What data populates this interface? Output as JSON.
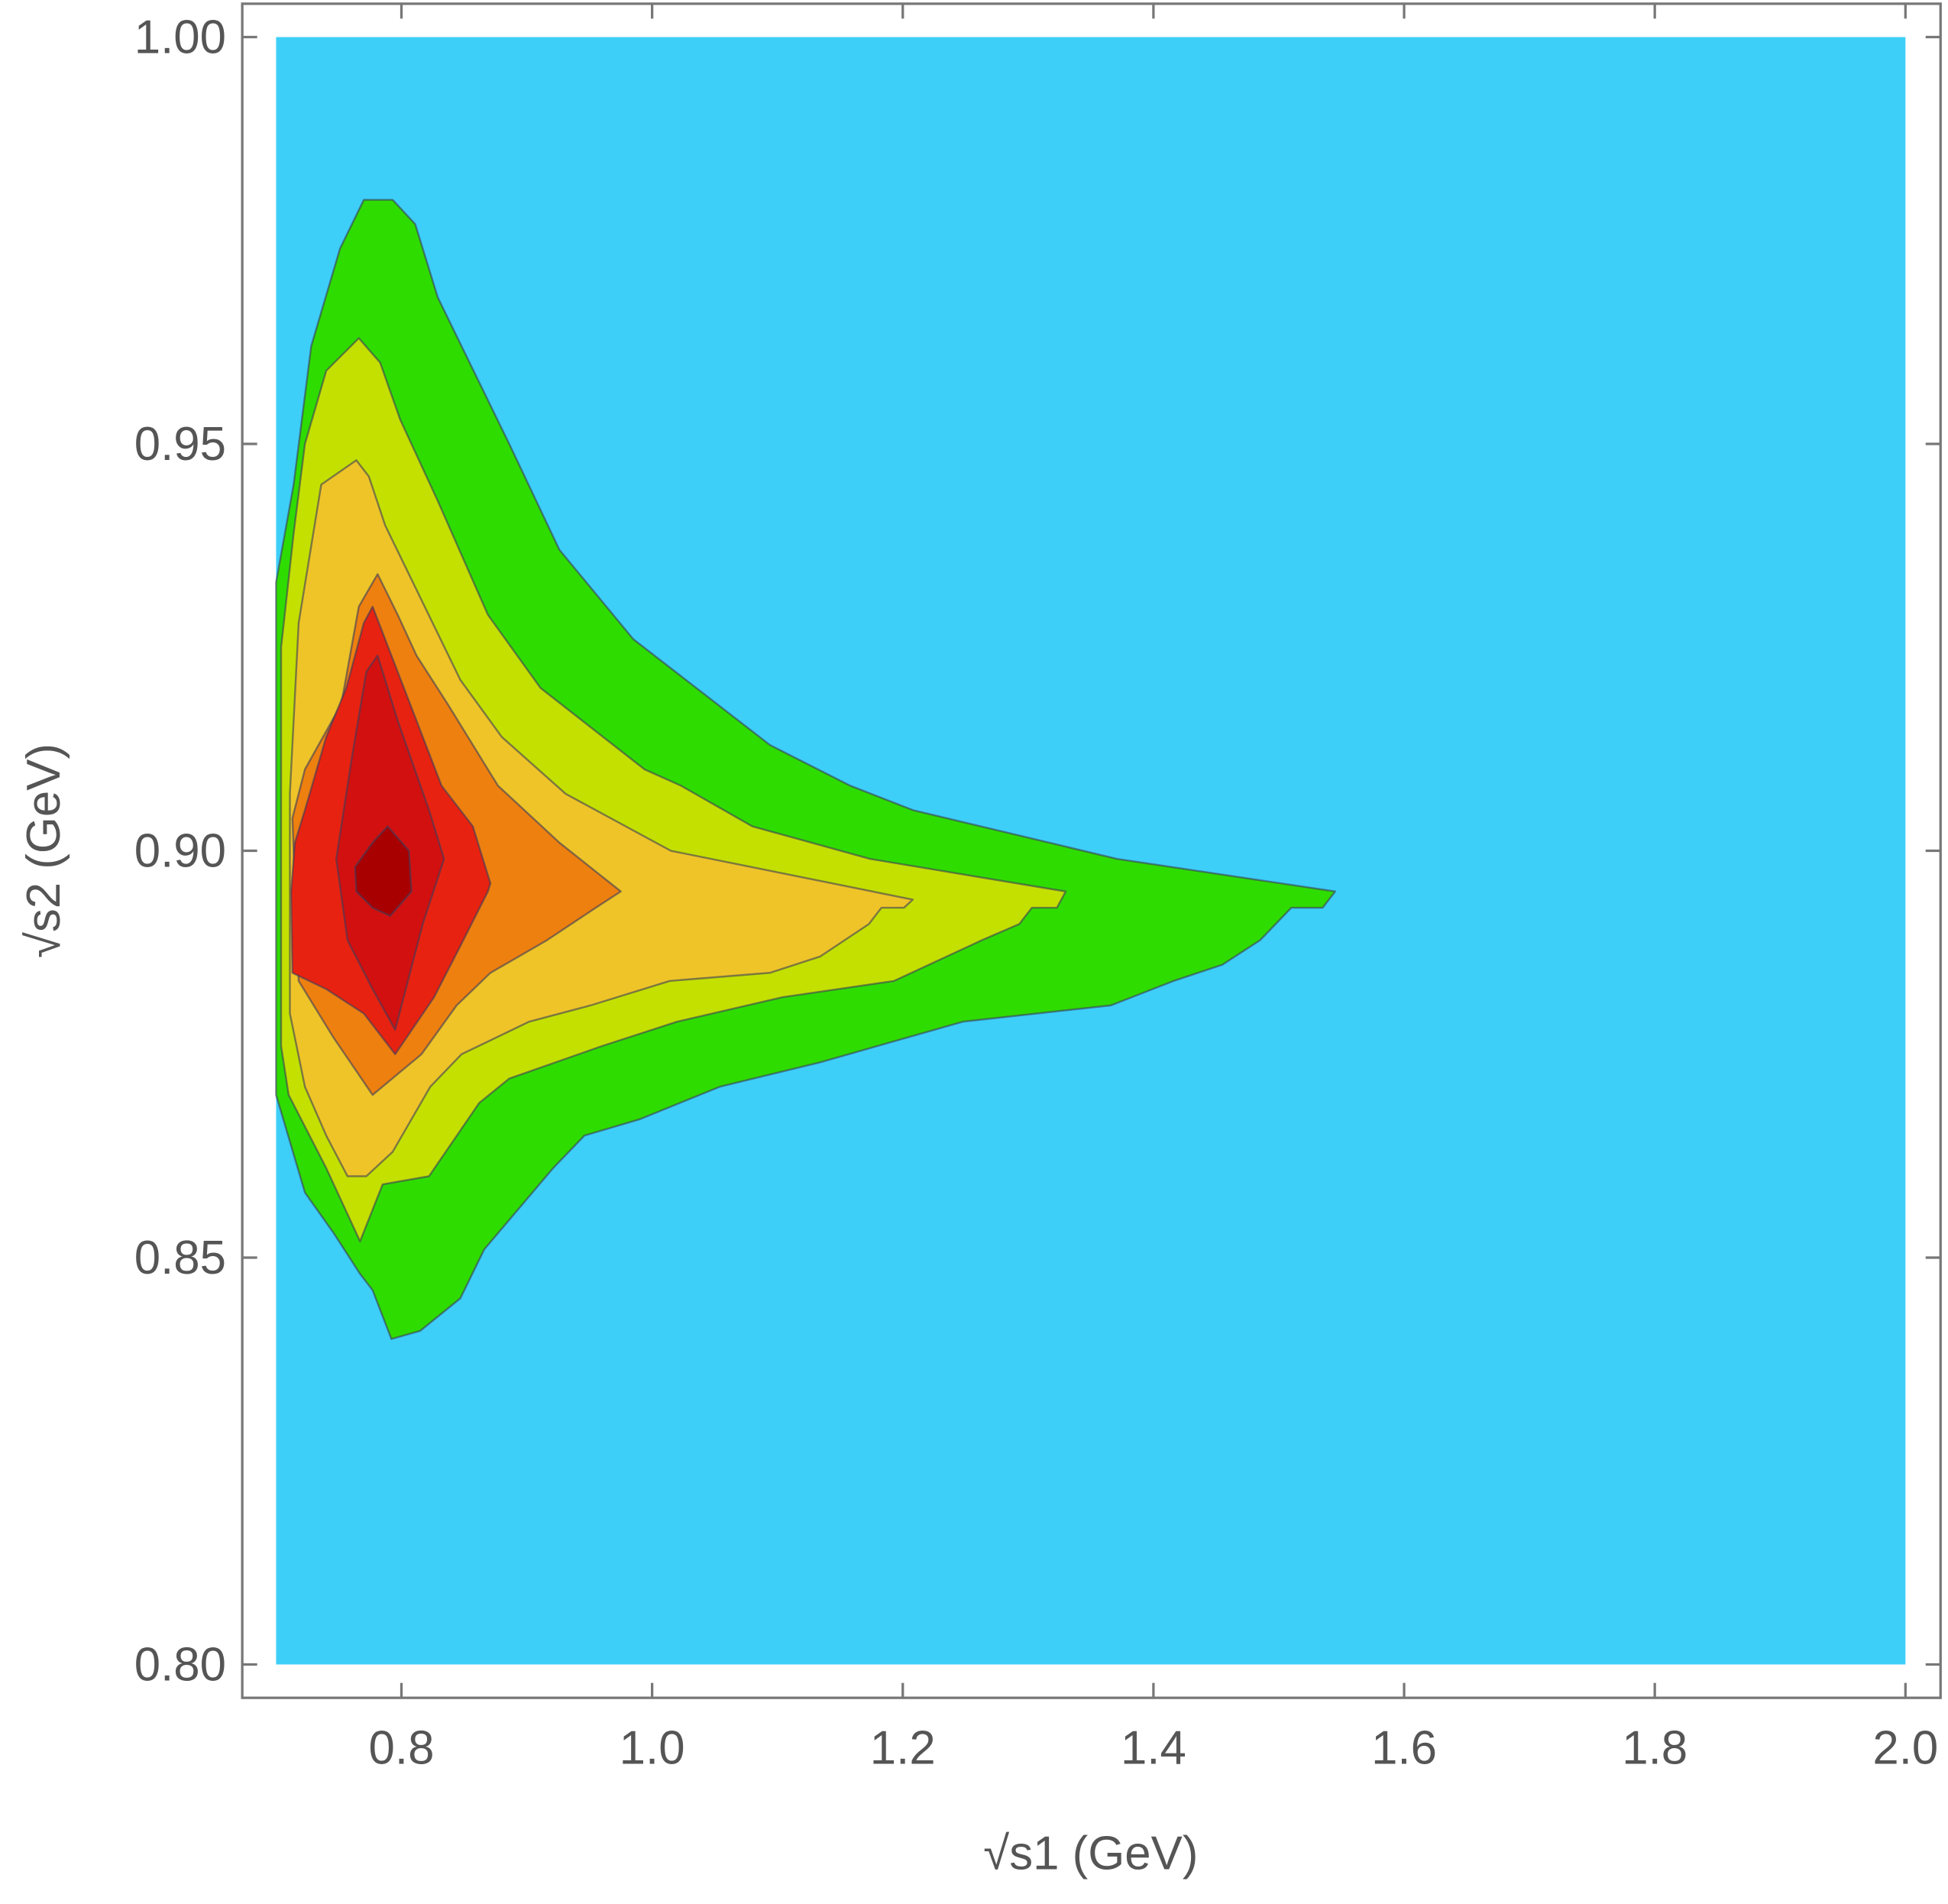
{
  "chart_data": {
    "type": "contour",
    "xlabel": "√s1 (GeV)",
    "ylabel": "√s2 (GeV)",
    "xlim": [
      0.673,
      2.028
    ],
    "ylim": [
      0.7959,
      1.0041
    ],
    "xticks": [
      0.8,
      {
        "value": 1,
        "label": "1.0"
      },
      1.2,
      1.4,
      1.6,
      1.8,
      {
        "value": 2,
        "label": "2.0"
      }
    ],
    "yticks": [
      {
        "value": 0.8,
        "label": "0.80"
      },
      0.85,
      {
        "value": 0.9,
        "label": "0.90"
      },
      0.95,
      {
        "value": 1,
        "label": "1.00"
      }
    ],
    "grid": false,
    "region": {
      "x": [
        0.7,
        2.0
      ],
      "y": [
        0.8,
        1.0
      ],
      "color": "#3dcff8"
    },
    "series": [
      {
        "color": "#2fdc00",
        "x": [
          0.7,
          0.7,
          0.714,
          0.728,
          0.751,
          0.77,
          0.793,
          0.811,
          0.829,
          0.886,
          0.926,
          0.985,
          1.094,
          1.158,
          1.208,
          1.371,
          1.545,
          1.535,
          1.51,
          1.485,
          1.455,
          1.416,
          1.366,
          1.248,
          1.134,
          1.054,
          0.99,
          0.946,
          0.921,
          0.866,
          0.847,
          0.815,
          0.792,
          0.777,
          0.767,
          0.746,
          0.723,
          0.7
        ],
        "y": [
          0.872,
          0.933,
          0.945,
          0.962,
          0.974,
          0.98,
          0.98,
          0.977,
          0.968,
          0.95,
          0.937,
          0.926,
          0.913,
          0.908,
          0.905,
          0.899,
          0.895,
          0.893,
          0.893,
          0.889,
          0.886,
          0.884,
          0.881,
          0.879,
          0.874,
          0.871,
          0.867,
          0.865,
          0.861,
          0.851,
          0.845,
          0.841,
          0.84,
          0.846,
          0.848,
          0.853,
          0.858,
          0.87
        ]
      },
      {
        "color": "#c4e000",
        "x": [
          0.704,
          0.714,
          0.723,
          0.74,
          0.766,
          0.783,
          0.799,
          0.829,
          0.869,
          0.911,
          0.994,
          1.023,
          1.08,
          1.174,
          1.33,
          1.323,
          1.303,
          1.293,
          1.263,
          1.193,
          1.104,
          1.02,
          0.96,
          0.886,
          0.862,
          0.822,
          0.785,
          0.767,
          0.74,
          0.71,
          0.704
        ],
        "y": [
          0.925,
          0.939,
          0.95,
          0.959,
          0.963,
          0.96,
          0.953,
          0.943,
          0.929,
          0.92,
          0.91,
          0.908,
          0.903,
          0.899,
          0.895,
          0.893,
          0.893,
          0.891,
          0.889,
          0.884,
          0.882,
          0.879,
          0.876,
          0.872,
          0.869,
          0.86,
          0.859,
          0.852,
          0.861,
          0.87,
          0.876
        ]
      },
      {
        "color": "#eec428",
        "x": [
          0.711,
          0.718,
          0.736,
          0.764,
          0.774,
          0.787,
          0.847,
          0.88,
          0.931,
          1.015,
          1.208,
          1.201,
          1.183,
          1.173,
          1.134,
          1.094,
          1.014,
          0.951,
          0.902,
          0.848,
          0.823,
          0.793,
          0.772,
          0.757,
          0.74,
          0.723,
          0.711
        ],
        "y": [
          0.907,
          0.928,
          0.945,
          0.948,
          0.946,
          0.94,
          0.921,
          0.914,
          0.907,
          0.9,
          0.894,
          0.893,
          0.893,
          0.891,
          0.887,
          0.885,
          0.884,
          0.881,
          0.879,
          0.875,
          0.871,
          0.863,
          0.86,
          0.86,
          0.865,
          0.871,
          0.88
        ]
      },
      {
        "color": "#ee8010",
        "x": [
          0.713,
          0.723,
          0.752,
          0.766,
          0.781,
          0.797,
          0.812,
          0.837,
          0.877,
          0.926,
          0.975,
          0.955,
          0.916,
          0.871,
          0.844,
          0.816,
          0.777,
          0.746,
          0.718
        ],
        "y": [
          0.904,
          0.91,
          0.918,
          0.93,
          0.934,
          0.929,
          0.924,
          0.918,
          0.908,
          0.901,
          0.895,
          0.893,
          0.889,
          0.885,
          0.881,
          0.875,
          0.87,
          0.877,
          0.884
        ]
      },
      {
        "color": "#e82210",
        "x": [
          0.715,
          0.723,
          0.74,
          0.756,
          0.77,
          0.777,
          0.792,
          0.817,
          0.832,
          0.857,
          0.871,
          0.869,
          0.846,
          0.826,
          0.795,
          0.77,
          0.74,
          0.713,
          0.712
        ],
        "y": [
          0.901,
          0.905,
          0.914,
          0.92,
          0.928,
          0.93,
          0.924,
          0.914,
          0.908,
          0.903,
          0.896,
          0.895,
          0.888,
          0.882,
          0.875,
          0.88,
          0.883,
          0.885,
          0.895
        ]
      },
      {
        "color": "#d21010",
        "x": [
          0.748,
          0.76,
          0.772,
          0.781,
          0.797,
          0.822,
          0.834,
          0.817,
          0.795,
          0.777,
          0.757
        ],
        "y": [
          0.899,
          0.911,
          0.922,
          0.924,
          0.916,
          0.905,
          0.899,
          0.891,
          0.878,
          0.883,
          0.889
        ]
      },
      {
        "color": "#a80000",
        "x": [
          0.763,
          0.777,
          0.789,
          0.806,
          0.808,
          0.791,
          0.777,
          0.764
        ],
        "y": [
          0.898,
          0.901,
          0.903,
          0.9,
          0.895,
          0.892,
          0.893,
          0.895
        ]
      }
    ]
  }
}
